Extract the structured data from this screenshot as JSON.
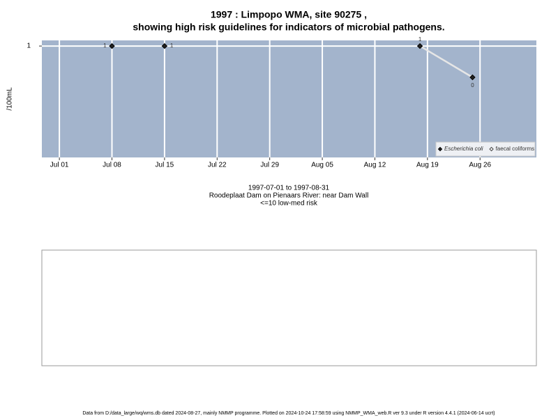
{
  "chart_data": {
    "type": "line",
    "title": "1997 : Limpopo WMA, site 90275 ,",
    "subtitle": "showing high risk guidelines for indicators of microbial pathogens.",
    "y_label": "/100mL",
    "x_label_lines": [
      "1997-07-01 to 1997-08-31",
      "Roodeplaat Dam on Pienaars River: near Dam Wall",
      "<=10 low-med risk"
    ],
    "footer": "Data from D:/data_large/wq/wms.db dated 2024-08-27, mainly NMMP programme. Plotted on 2024-10-24 17:58:59 using NMMP_WMA_web.R ver 9.3 under R version 4.4.1 (2024-06-14 ucrt)",
    "series": [
      {
        "name": "Escherichia coli",
        "color": "#222222",
        "marker": "filled",
        "line": false,
        "x": [
          "1997-07-08",
          "1997-07-15",
          "1997-08-18",
          "1997-08-25"
        ],
        "values": [
          1,
          1,
          1,
          0
        ]
      },
      {
        "name": "faecal coliforms",
        "color": "#e6e6e6",
        "marker": "open",
        "line": true,
        "x": [
          "1997-08-18",
          "1997-08-25"
        ],
        "values": [
          1,
          0
        ]
      }
    ],
    "xlim": [
      "1997-06-28T16:00Z",
      "1997-09-02T12:00Z"
    ],
    "xticks": [
      {
        "value": "1997-07-01",
        "label": "Jul 01"
      },
      {
        "value": "1997-07-08",
        "label": "Jul 08"
      },
      {
        "value": "1997-07-15",
        "label": "Jul 15"
      },
      {
        "value": "1997-07-22",
        "label": "Jul 22"
      },
      {
        "value": "1997-07-29",
        "label": "Jul 29"
      },
      {
        "value": "1997-08-05",
        "label": "Aug 05"
      },
      {
        "value": "1997-08-12",
        "label": "Aug 12"
      },
      {
        "value": "1997-08-19",
        "label": "Aug 19"
      },
      {
        "value": "1997-08-26",
        "label": "Aug 26"
      }
    ],
    "ylim": [
      -2.56,
      1.18
    ],
    "yticks": [
      1
    ],
    "grid": true,
    "legend": "bottom right"
  }
}
